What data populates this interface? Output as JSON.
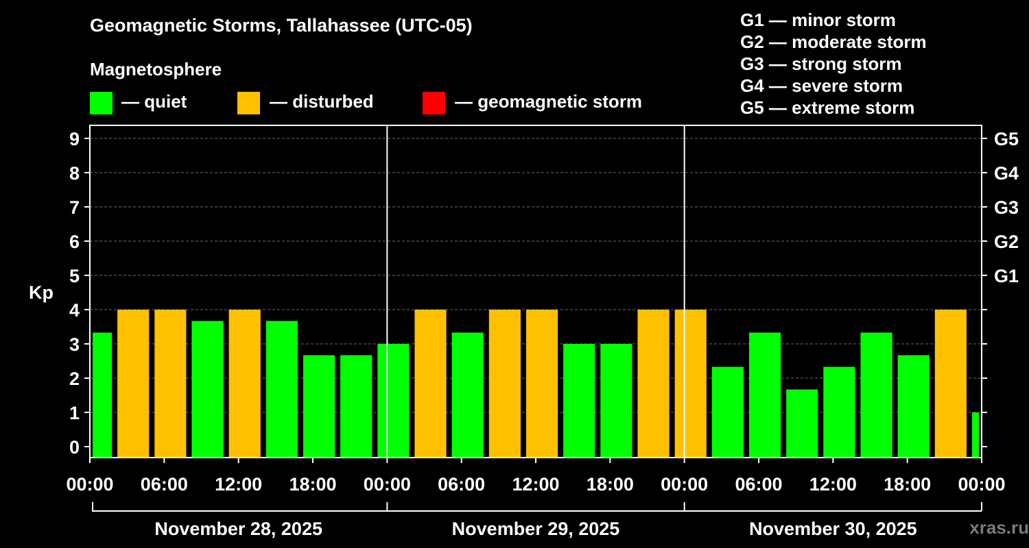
{
  "chart_data": {
    "type": "bar",
    "title": "Geomagnetic Storms, Tallahassee (UTC-05)",
    "ylabel": "Kp",
    "ylim": [
      0,
      9
    ],
    "yticks": [
      "0",
      "1",
      "2",
      "3",
      "4",
      "5",
      "6",
      "7",
      "8",
      "9"
    ],
    "right_labels": [
      {
        "value": 5,
        "label": "G1"
      },
      {
        "value": 6,
        "label": "G2"
      },
      {
        "value": 7,
        "label": "G3"
      },
      {
        "value": 8,
        "label": "G4"
      },
      {
        "value": 9,
        "label": "G5"
      }
    ],
    "x_hours_start": -1,
    "bar_step_hours": 3,
    "xtick_labels": [
      "00:00",
      "06:00",
      "12:00",
      "18:00",
      "00:00",
      "06:00",
      "12:00",
      "18:00",
      "00:00",
      "06:00",
      "12:00",
      "18:00",
      "00:00"
    ],
    "days": [
      "November 28, 2025",
      "November 29, 2025",
      "November 30, 2025"
    ],
    "values": [
      3.33,
      4,
      4,
      3.67,
      4,
      3.67,
      2.67,
      2.67,
      3,
      4,
      3.33,
      4,
      4,
      3,
      3,
      4,
      4,
      2.33,
      3.33,
      1.67,
      2.33,
      3.33,
      2.67,
      4,
      1
    ],
    "status": [
      "quiet",
      "disturbed",
      "disturbed",
      "quiet",
      "disturbed",
      "quiet",
      "quiet",
      "quiet",
      "quiet",
      "disturbed",
      "quiet",
      "disturbed",
      "disturbed",
      "quiet",
      "quiet",
      "disturbed",
      "disturbed",
      "quiet",
      "quiet",
      "quiet",
      "quiet",
      "quiet",
      "quiet",
      "disturbed",
      "quiet"
    ],
    "grid": true
  },
  "legend": {
    "heading": "Magnetosphere",
    "items": [
      {
        "label": "— quiet",
        "color": "#00ff00"
      },
      {
        "label": "— disturbed",
        "color": "#ffc000"
      },
      {
        "label": "— geomagnetic storm",
        "color": "#ff0000"
      }
    ]
  },
  "storm_scale": [
    "G1 — minor storm",
    "G2 — moderate storm",
    "G3 — strong storm",
    "G4 — severe storm",
    "G5 — extreme storm"
  ],
  "colors": {
    "quiet": "#00ff00",
    "disturbed": "#ffc000",
    "storm": "#ff0000"
  },
  "watermark": "xras.ru"
}
